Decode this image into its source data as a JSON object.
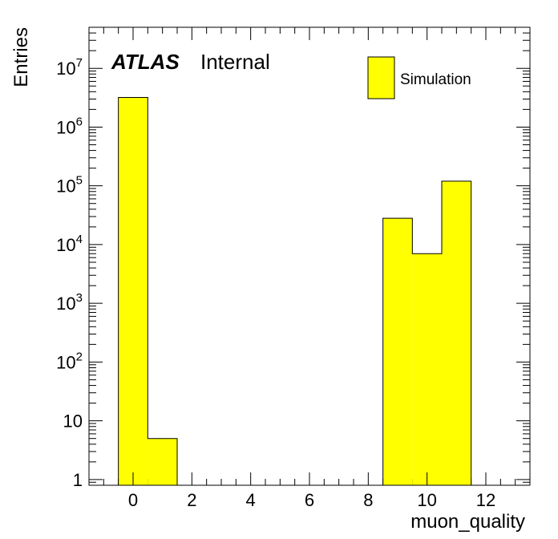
{
  "chart_data": {
    "type": "bar",
    "style": "histogram",
    "bin_edges": [
      -0.5,
      0.5,
      1.5,
      2.5,
      3.5,
      4.5,
      5.5,
      6.5,
      7.5,
      8.5,
      9.5,
      10.5,
      11.5
    ],
    "values": [
      3200000,
      5,
      0,
      0,
      0,
      0,
      0,
      0,
      0,
      28000,
      7000,
      120000
    ],
    "xlabel": "muon_quality",
    "ylabel": "Entries",
    "xlim": [
      -1.5,
      13.5
    ],
    "ylim": [
      0.8,
      50000000
    ],
    "yscale": "log",
    "x_ticks": [
      "0",
      "2",
      "4",
      "6",
      "8",
      "10",
      "12"
    ],
    "y_ticks": [
      {
        "base": "1",
        "exp": ""
      },
      {
        "base": "10",
        "exp": ""
      },
      {
        "base": "10",
        "exp": "2"
      },
      {
        "base": "10",
        "exp": "3"
      },
      {
        "base": "10",
        "exp": "4"
      },
      {
        "base": "10",
        "exp": "5"
      },
      {
        "base": "10",
        "exp": "6"
      },
      {
        "base": "10",
        "exp": "7"
      }
    ],
    "y_tick_values": [
      1,
      10,
      100,
      1000,
      10000,
      100000,
      1000000,
      10000000
    ],
    "series_name": "Simulation",
    "fill_color": "#ffff00",
    "line_color": "#000000",
    "legend_position": "top-right",
    "atlas_label": "ATLAS",
    "atlas_sublabel": "Internal"
  }
}
